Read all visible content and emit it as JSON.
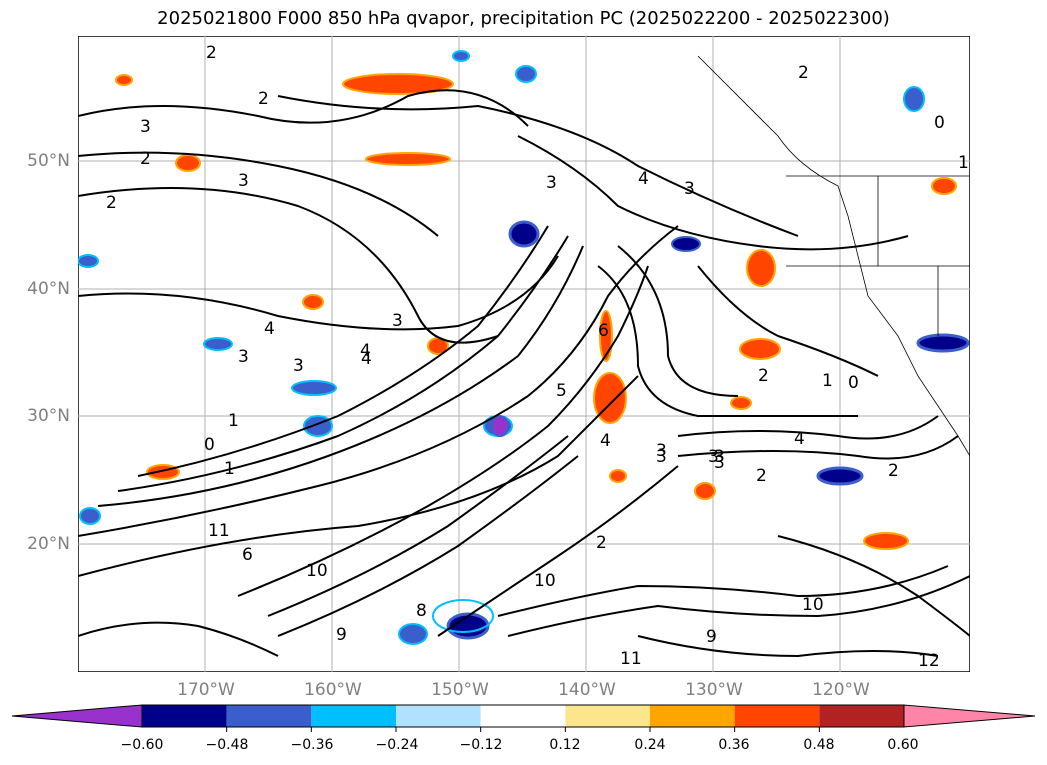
{
  "title": "2025021800 F000 850 hPa qvapor, precipitation PC (2025022200 - 2025022300)",
  "lat_labels": [
    "50°N",
    "40°N",
    "30°N",
    "20°N"
  ],
  "lon_labels": [
    "170°W",
    "160°W",
    "150°W",
    "140°W",
    "130°W",
    "120°W"
  ],
  "colorbar": {
    "ticks": [
      "−0.60",
      "−0.48",
      "−0.36",
      "−0.24",
      "−0.12",
      "0.12",
      "0.24",
      "0.36",
      "0.48",
      "0.60"
    ],
    "colors": [
      "#9932cc",
      "#00008b",
      "#3a5fcd",
      "#00bfff",
      "#b0e2ff",
      "#ffffff",
      "#fce68c",
      "#ffa500",
      "#ff4500",
      "#b22222",
      "#ff85a8"
    ]
  },
  "contour_labels": [
    "2",
    "3",
    "2",
    "3",
    "2",
    "3",
    "2",
    "4",
    "3",
    "2",
    "3",
    "4",
    "3",
    "4",
    "5",
    "6",
    "2",
    "3",
    "4",
    "1",
    "0",
    "1",
    "3",
    "4",
    "2",
    "3",
    "3",
    "1",
    "0",
    "11",
    "10",
    "9",
    "8",
    "6",
    "10",
    "11",
    "12",
    "10",
    "9",
    "3",
    "4",
    "2",
    "3",
    "2",
    "0",
    "1"
  ]
}
